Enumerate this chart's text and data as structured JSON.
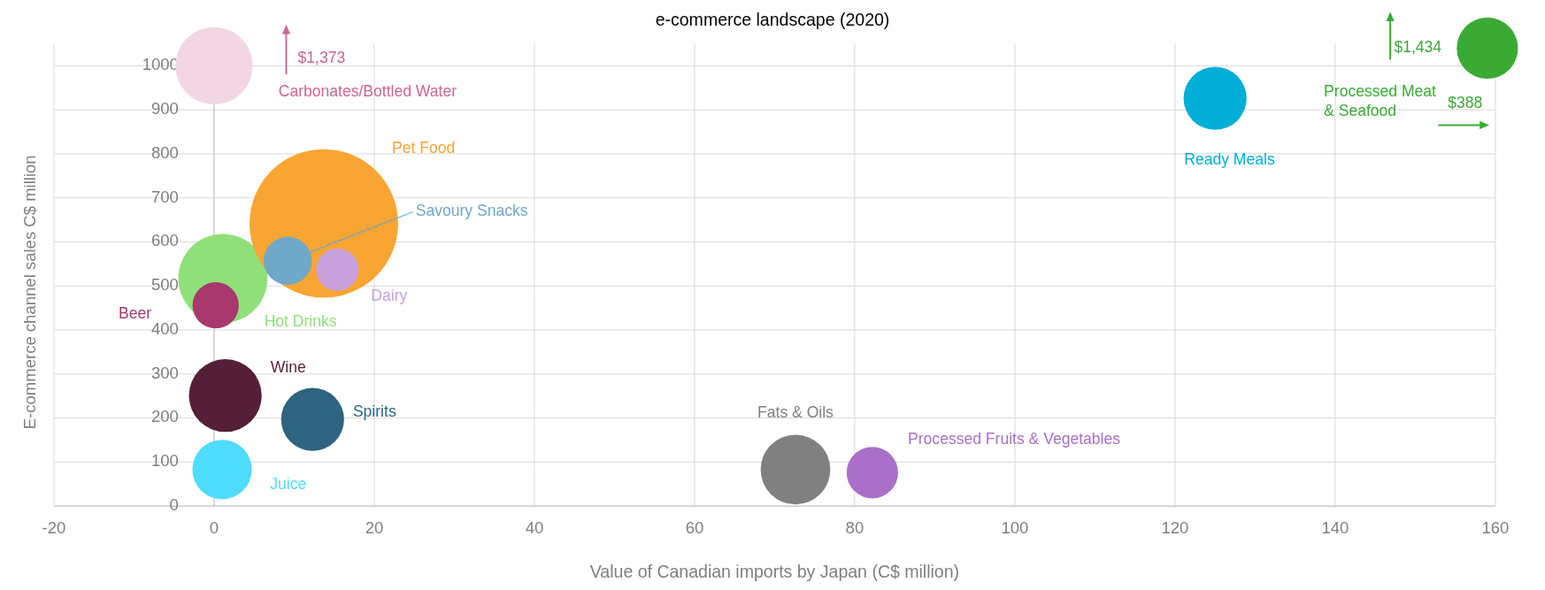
{
  "chart_data": {
    "type": "bubble",
    "title": "e-commerce landscape (2020)",
    "xlabel": "Value of Canadian imports by Japan (C$ million)",
    "ylabel": "E-commerce channel sales C$ million",
    "xlim": [
      -20,
      160
    ],
    "xticks": [
      -20,
      0,
      20,
      40,
      60,
      80,
      100,
      120,
      140,
      160
    ],
    "ylim": [
      0,
      1050
    ],
    "yticks": [
      0,
      100,
      200,
      300,
      400,
      500,
      600,
      700,
      800,
      900,
      1000
    ],
    "grid": true,
    "series": [
      {
        "name": "Carbonates/Bottled Water",
        "color": "#f2d7e3",
        "x": [
          0
        ],
        "values": [
          1000
        ],
        "sizes": [
          0.27
        ]
      },
      {
        "name": "Hot Drinks",
        "color": "#8fe07a",
        "x": [
          1.1
        ],
        "values": [
          517
        ],
        "sizes": [
          0.36
        ]
      },
      {
        "name": "Pet Food",
        "color": "#f9a533",
        "x": [
          13.7
        ],
        "values": [
          642
        ],
        "sizes": [
          1
        ]
      },
      {
        "name": "Savoury Snacks",
        "color": "#6fa8c8",
        "x": [
          9.2
        ],
        "values": [
          557
        ],
        "sizes": [
          0.105
        ]
      },
      {
        "name": "Dairy",
        "color": "#c8a0dc",
        "x": [
          15.4
        ],
        "values": [
          537
        ],
        "sizes": [
          0.082
        ]
      },
      {
        "name": "Beer",
        "color": "#a8386e",
        "x": [
          0.2
        ],
        "values": [
          456
        ],
        "sizes": [
          0.097
        ]
      },
      {
        "name": "Wine",
        "color": "#561f38",
        "x": [
          1.4
        ],
        "values": [
          251
        ],
        "sizes": [
          0.24
        ]
      },
      {
        "name": "Spirits",
        "color": "#2e6480",
        "x": [
          12.3
        ],
        "values": [
          197
        ],
        "sizes": [
          0.18
        ]
      },
      {
        "name": "Juice",
        "color": "#4fdcfd",
        "x": [
          1.0
        ],
        "values": [
          83
        ],
        "sizes": [
          0.16
        ]
      },
      {
        "name": "Fats & Oils",
        "color": "#808080",
        "x": [
          72.6
        ],
        "values": [
          83
        ],
        "sizes": [
          0.22
        ]
      },
      {
        "name": "Processed Fruits & Vegetables",
        "color": "#aa6fc8",
        "x": [
          82.2
        ],
        "values": [
          76
        ],
        "sizes": [
          0.12
        ]
      },
      {
        "name": "Ready Meals",
        "color": "#00aed8",
        "x": [
          125
        ],
        "values": [
          926
        ],
        "sizes": [
          0.18
        ]
      },
      {
        "name": "Processed Meat & Seafood",
        "color": "#3aaa35",
        "x": [
          159
        ],
        "values": [
          1040
        ],
        "sizes": [
          0.17
        ]
      }
    ],
    "annotations": [
      "$1,373",
      "$1,434",
      "$388"
    ]
  }
}
